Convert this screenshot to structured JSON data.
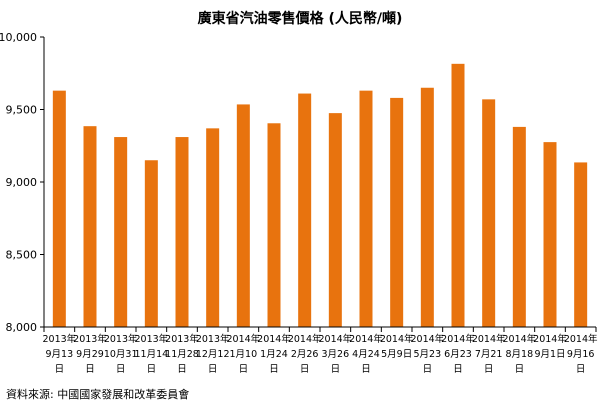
{
  "chart_data": {
    "type": "bar",
    "title": "廣東省汽油零售價格 (人民幣/噸)",
    "xlabel": "",
    "ylabel": "",
    "ylim": [
      8000,
      10000
    ],
    "yticks": [
      "8,000",
      "8,500",
      "9,000",
      "9,500",
      "10,000"
    ],
    "ytick_values": [
      8000,
      8500,
      9000,
      9500,
      10000
    ],
    "bar_color": "#e8730e",
    "categories": [
      {
        "year": "2013年",
        "date": "9月13",
        "day": "日"
      },
      {
        "year": "2013年",
        "date": "9月29",
        "day": "日"
      },
      {
        "year": "2013年",
        "date": "10月31",
        "day": "日"
      },
      {
        "year": "2013年",
        "date": "11月14",
        "day": "日"
      },
      {
        "year": "2013年",
        "date": "11月28",
        "day": "日"
      },
      {
        "year": "2013年",
        "date": "12月12",
        "day": "日"
      },
      {
        "year": "2014年",
        "date": "1月10",
        "day": "日"
      },
      {
        "year": "2014年",
        "date": "1月24",
        "day": "日"
      },
      {
        "year": "2014年",
        "date": "2月26",
        "day": "日"
      },
      {
        "year": "2014年",
        "date": "3月26",
        "day": "日"
      },
      {
        "year": "2014年",
        "date": "4月24",
        "day": "日"
      },
      {
        "year": "2014年",
        "date": "5月9日",
        "day": ""
      },
      {
        "year": "2014年",
        "date": "5月23",
        "day": "日"
      },
      {
        "year": "2014年",
        "date": "6月23",
        "day": "日"
      },
      {
        "year": "2014年",
        "date": "7月21",
        "day": "日"
      },
      {
        "year": "2014年",
        "date": "8月18",
        "day": "日"
      },
      {
        "year": "2014年",
        "date": "9月1日",
        "day": ""
      },
      {
        "year": "2014年",
        "date": "9月16",
        "day": "日"
      }
    ],
    "values": [
      9630,
      9385,
      9310,
      9150,
      9310,
      9370,
      9535,
      9405,
      9610,
      9475,
      9630,
      9580,
      9650,
      9815,
      9570,
      9380,
      9275,
      9135
    ]
  },
  "source": "資料來源: 中國國家發展和改革委員會"
}
